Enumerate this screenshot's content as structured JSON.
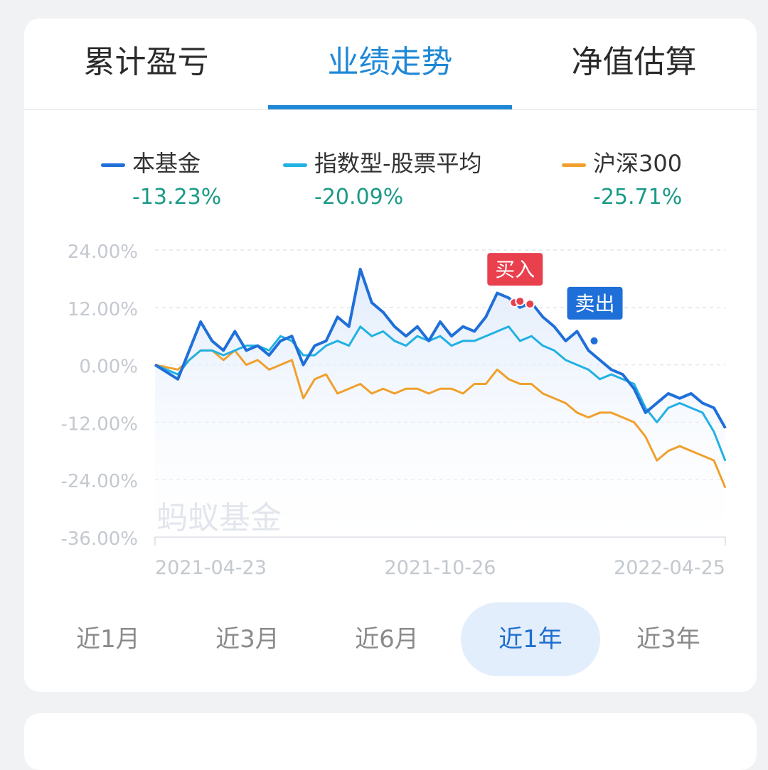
{
  "tabs": [
    {
      "label": "累计盈亏",
      "active": false
    },
    {
      "label": "业绩走势",
      "active": true
    },
    {
      "label": "净值估算",
      "active": false
    }
  ],
  "legend": [
    {
      "name": "本基金",
      "value": "-13.23%",
      "color": "#1f6fd8"
    },
    {
      "name": "指数型-股票平均",
      "value": "-20.09%",
      "color": "#22b1e3"
    },
    {
      "name": "沪深300",
      "value": "-25.71%",
      "color": "#f0a02e"
    }
  ],
  "watermark": "蚂蚁基金",
  "markers": {
    "buy": "买入",
    "sell": "卖出",
    "buy_color": "#e8404d",
    "sell_color": "#1f6fd8"
  },
  "ranges": [
    {
      "label": "近1月",
      "active": false
    },
    {
      "label": "近3月",
      "active": false
    },
    {
      "label": "近6月",
      "active": false
    },
    {
      "label": "近1年",
      "active": true
    },
    {
      "label": "近3年",
      "active": false
    }
  ],
  "chart_data": {
    "type": "line",
    "y_ticks": [
      "24.00%",
      "12.00%",
      "0.00%",
      "-12.00%",
      "-24.00%",
      "-36.00%"
    ],
    "ylim": [
      -36,
      24
    ],
    "x_ticks": [
      "2021-04-23",
      "2021-10-26",
      "2022-04-25"
    ],
    "grid": true,
    "legend_position": "top",
    "x": [
      0,
      4,
      6,
      8,
      10,
      12,
      14,
      16,
      18,
      20,
      22,
      24,
      26,
      28,
      30,
      32,
      34,
      36,
      38,
      40,
      42,
      44,
      46,
      48,
      50,
      52,
      54,
      56,
      58,
      60,
      62,
      64,
      66,
      68,
      70,
      72,
      74,
      76,
      78,
      80,
      82,
      84,
      86,
      88,
      90,
      92,
      94,
      96,
      98,
      100
    ],
    "series": [
      {
        "name": "本基金",
        "color": "#1f6fd8",
        "values": [
          0,
          -3,
          3,
          9,
          5,
          3,
          7,
          3,
          4,
          2,
          5,
          6,
          0,
          4,
          5,
          10,
          8,
          20,
          13,
          11,
          8,
          6,
          8,
          5,
          9,
          6,
          8,
          7,
          10,
          15,
          14,
          12,
          13,
          10,
          8,
          5,
          7,
          3,
          1,
          -1,
          -2,
          -5,
          -10,
          -8,
          -6,
          -7,
          -6,
          -8,
          -9,
          -13.23
        ]
      },
      {
        "name": "指数型-股票平均",
        "color": "#22b1e3",
        "values": [
          0,
          -2,
          1,
          3,
          3,
          2,
          3,
          4,
          4,
          3,
          6,
          5,
          2,
          2,
          4,
          5,
          4,
          8,
          6,
          7,
          5,
          4,
          6,
          5,
          6,
          4,
          5,
          5,
          6,
          7,
          8,
          5,
          6,
          4,
          3,
          1,
          0,
          -1,
          -3,
          -2,
          -3,
          -4,
          -9,
          -12,
          -9,
          -8,
          -9,
          -10,
          -14,
          -20.09
        ]
      },
      {
        "name": "沪深300",
        "color": "#f0a02e",
        "values": [
          0,
          -1,
          1,
          3,
          3,
          1,
          3,
          0,
          1,
          -1,
          0,
          1,
          -7,
          -3,
          -2,
          -6,
          -5,
          -4,
          -6,
          -5,
          -6,
          -5,
          -5,
          -6,
          -5,
          -5,
          -6,
          -4,
          -4,
          -1,
          -3,
          -4,
          -4,
          -6,
          -7,
          -8,
          -10,
          -11,
          -10,
          -10,
          -11,
          -12,
          -15,
          -20,
          -18,
          -17,
          -18,
          -19,
          -20,
          -25.71
        ]
      }
    ]
  }
}
